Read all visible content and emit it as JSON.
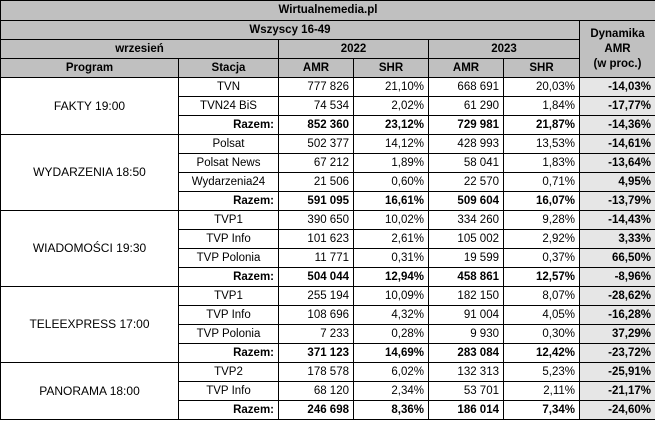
{
  "header": {
    "site": "Wirtualnemedia.pl",
    "audience": "Wszyscy 16-49",
    "period": "wrzesień",
    "year_a": "2022",
    "year_b": "2023",
    "dynamics_label_1": "Dynamika",
    "dynamics_label_2": "AMR",
    "dynamics_label_3": "(w proc.)",
    "col_program": "Program",
    "col_station": "Stacja",
    "col_amr": "AMR",
    "col_shr": "SHR"
  },
  "groups": [
    {
      "program": "FAKTY 19:00",
      "rows": [
        {
          "station": "TVN",
          "amr22": "777 826",
          "shr22": "21,10%",
          "amr23": "668 691",
          "shr23": "20,03%",
          "dyn": "-14,03%"
        },
        {
          "station": "TVN24 BiS",
          "amr22": "74 534",
          "shr22": "2,02%",
          "amr23": "61 290",
          "shr23": "1,84%",
          "dyn": "-17,77%"
        },
        {
          "station": "Razem:",
          "amr22": "852 360",
          "shr22": "23,12%",
          "amr23": "729 981",
          "shr23": "21,87%",
          "dyn": "-14,36%"
        }
      ]
    },
    {
      "program": "WYDARZENIA 18:50",
      "rows": [
        {
          "station": "Polsat",
          "amr22": "502 377",
          "shr22": "14,12%",
          "amr23": "428 993",
          "shr23": "13,53%",
          "dyn": "-14,61%"
        },
        {
          "station": "Polsat News",
          "amr22": "67 212",
          "shr22": "1,89%",
          "amr23": "58 041",
          "shr23": "1,83%",
          "dyn": "-13,64%"
        },
        {
          "station": "Wydarzenia24",
          "amr22": "21 506",
          "shr22": "0,60%",
          "amr23": "22 570",
          "shr23": "0,71%",
          "dyn": "4,95%"
        },
        {
          "station": "Razem:",
          "amr22": "591 095",
          "shr22": "16,61%",
          "amr23": "509 604",
          "shr23": "16,07%",
          "dyn": "-13,79%"
        }
      ]
    },
    {
      "program": "WIADOMOŚCI 19:30",
      "rows": [
        {
          "station": "TVP1",
          "amr22": "390 650",
          "shr22": "10,02%",
          "amr23": "334 260",
          "shr23": "9,28%",
          "dyn": "-14,43%"
        },
        {
          "station": "TVP Info",
          "amr22": "101 623",
          "shr22": "2,61%",
          "amr23": "105 002",
          "shr23": "2,92%",
          "dyn": "3,33%"
        },
        {
          "station": "TVP Polonia",
          "amr22": "11 771",
          "shr22": "0,31%",
          "amr23": "19 599",
          "shr23": "0,37%",
          "dyn": "66,50%"
        },
        {
          "station": "Razem:",
          "amr22": "504 044",
          "shr22": "12,94%",
          "amr23": "458 861",
          "shr23": "12,57%",
          "dyn": "-8,96%"
        }
      ]
    },
    {
      "program": "TELEEXPRESS 17:00",
      "rows": [
        {
          "station": "TVP1",
          "amr22": "255 194",
          "shr22": "10,09%",
          "amr23": "182 150",
          "shr23": "8,07%",
          "dyn": "-28,62%"
        },
        {
          "station": "TVP Info",
          "amr22": "108 696",
          "shr22": "4,32%",
          "amr23": "91 004",
          "shr23": "4,05%",
          "dyn": "-16,28%"
        },
        {
          "station": "TVP Polonia",
          "amr22": "7 233",
          "shr22": "0,28%",
          "amr23": "9 930",
          "shr23": "0,30%",
          "dyn": "37,29%"
        },
        {
          "station": "Razem:",
          "amr22": "371 123",
          "shr22": "14,69%",
          "amr23": "283 084",
          "shr23": "12,42%",
          "dyn": "-23,72%"
        }
      ]
    },
    {
      "program": "PANORAMA 18:00",
      "rows": [
        {
          "station": "TVP2",
          "amr22": "178 578",
          "shr22": "6,02%",
          "amr23": "132 313",
          "shr23": "5,23%",
          "dyn": "-25,91%"
        },
        {
          "station": "TVP Info",
          "amr22": "68 120",
          "shr22": "2,34%",
          "amr23": "53 701",
          "shr23": "2,11%",
          "dyn": "-21,17%"
        },
        {
          "station": "Razem:",
          "amr22": "246 698",
          "shr22": "8,36%",
          "amr23": "186 014",
          "shr23": "7,34%",
          "dyn": "-24,60%"
        }
      ]
    }
  ]
}
